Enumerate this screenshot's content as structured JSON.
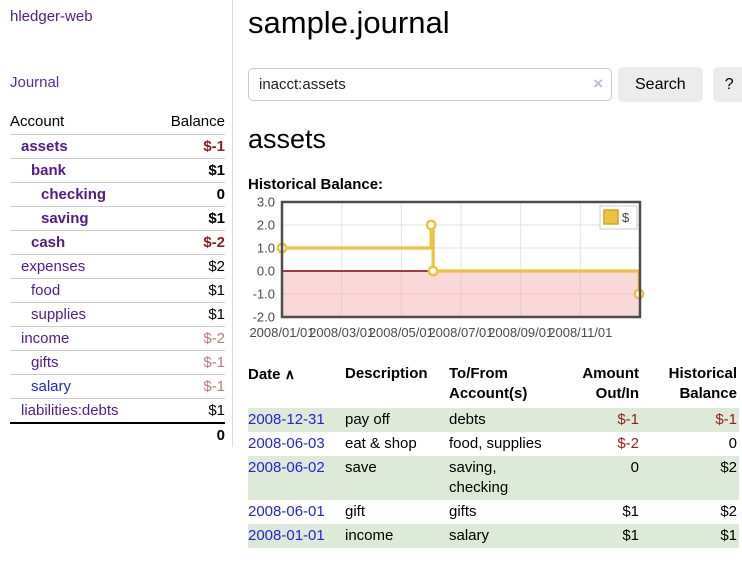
{
  "app": {
    "brand": "hledger-web",
    "nav_journal": "Journal"
  },
  "sidebar": {
    "headers": {
      "account": "Account",
      "balance": "Balance"
    },
    "accounts": [
      {
        "name": "assets",
        "balance": "$-1"
      },
      {
        "name": "bank",
        "balance": "$1"
      },
      {
        "name": "checking",
        "balance": "0"
      },
      {
        "name": "saving",
        "balance": "$1"
      },
      {
        "name": "cash",
        "balance": "$-2"
      },
      {
        "name": "expenses",
        "balance": "$2"
      },
      {
        "name": "food",
        "balance": "$1"
      },
      {
        "name": "supplies",
        "balance": "$1"
      },
      {
        "name": "income",
        "balance": "$-2"
      },
      {
        "name": "gifts",
        "balance": "$-1"
      },
      {
        "name": "salary",
        "balance": "$-1"
      },
      {
        "name": "liabilities:debts",
        "balance": "$1"
      }
    ],
    "total": "0"
  },
  "header": {
    "title": "sample.journal"
  },
  "search": {
    "value": "inacct:assets",
    "clear_icon": "×",
    "button_label": "Search",
    "help_label": "?"
  },
  "account_page": {
    "title": "assets",
    "chart_label": "Historical Balance:"
  },
  "chart_data": {
    "type": "line",
    "step": true,
    "title": "Historical Balance",
    "series": [
      {
        "name": "$",
        "color": "#edc240",
        "points": [
          [
            "2008/01/01",
            1
          ],
          [
            "2008/06/01",
            2
          ],
          [
            "2008/06/03",
            0
          ],
          [
            "2008/12/31",
            -1
          ]
        ]
      }
    ],
    "ylim": [
      -2,
      3
    ],
    "ytick_labels": [
      "3.0",
      "2.0",
      "1.0",
      "0.0",
      "-1.0",
      "-2.0"
    ],
    "xtick_labels": [
      "2008/01/01",
      "2008/03/01",
      "2008/05/01",
      "2008/07/01",
      "2008/09/01",
      "2008/11/01"
    ],
    "legend": {
      "position": "top-right",
      "label": "$"
    },
    "grid": true,
    "zero_line_color": "#8b0000",
    "negative_region_color": "#f1a8a8",
    "border_color": "#4d4d4d",
    "tick_text_color": "#4a4a4a"
  },
  "register": {
    "headers": {
      "date": "Date",
      "sort_icon": "∧",
      "description": "Description",
      "tofrom": "To/From Account(s)",
      "amount": "Amount Out/In",
      "historical": "Historical Balance"
    },
    "rows": [
      {
        "date": "2008-12-31",
        "description": "pay off",
        "tofrom": "debts",
        "amount": "$-1",
        "historical": "$-1"
      },
      {
        "date": "2008-06-03",
        "description": "eat & shop",
        "tofrom": "food, supplies",
        "amount": "$-2",
        "historical": "0"
      },
      {
        "date": "2008-06-02",
        "description": "save",
        "tofrom": "saving, checking",
        "amount": "0",
        "historical": "$2"
      },
      {
        "date": "2008-06-01",
        "description": "gift",
        "tofrom": "gifts",
        "amount": "$1",
        "historical": "$2"
      },
      {
        "date": "2008-01-01",
        "description": "income",
        "tofrom": "salary",
        "amount": "$1",
        "historical": "$1"
      }
    ]
  },
  "colors": {
    "link_purple": "#551a8b",
    "link_blue": "#2323dd",
    "negative_strong": "#8f1d1d",
    "negative_light": "#bd7a7a",
    "row_stripe_green": "#dcead7",
    "series_gold": "#edc240"
  }
}
